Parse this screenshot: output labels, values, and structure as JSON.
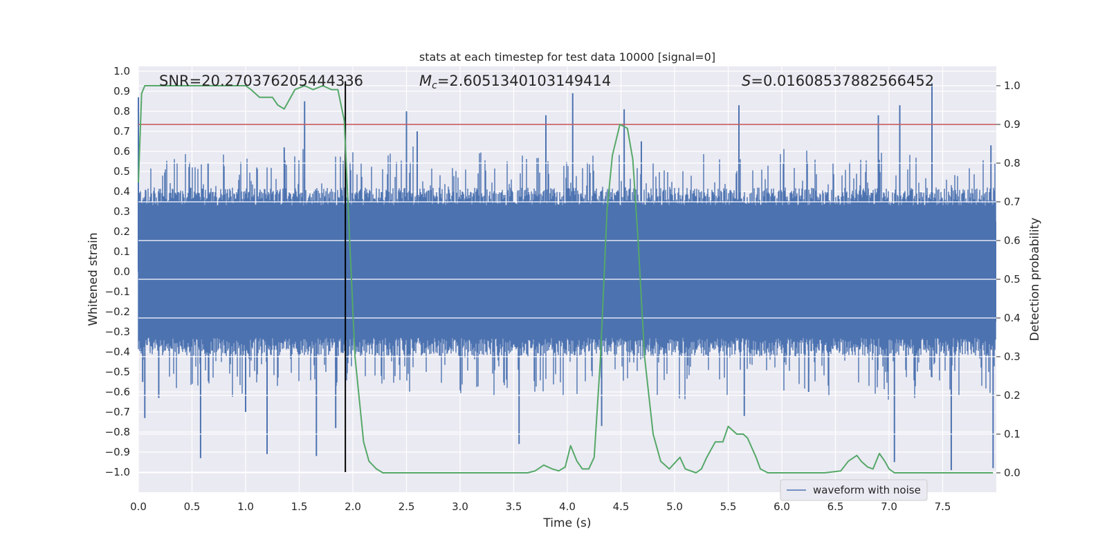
{
  "chart_data": {
    "type": "line",
    "title": "stats at each timestep for test data 10000 [signal=0]",
    "xlabel": "Time (s)",
    "ylabel_left": "Whitened strain",
    "ylabel_right": "Detection probability",
    "xlim": [
      0,
      8
    ],
    "ylim_left": [
      -1.1,
      1.05
    ],
    "ylim_right": [
      -0.05,
      1.03
    ],
    "x_ticks": [
      "0.0",
      "0.5",
      "1.0",
      "1.5",
      "2.0",
      "2.5",
      "3.0",
      "3.5",
      "4.0",
      "4.5",
      "5.0",
      "5.5",
      "6.0",
      "6.5",
      "7.0",
      "7.5"
    ],
    "y_ticks_left": [
      "1.0",
      "0.9",
      "0.8",
      "0.7",
      "0.6",
      "0.5",
      "0.4",
      "0.3",
      "0.2",
      "0.1",
      "0.0",
      "-0.1",
      "-0.2",
      "-0.3",
      "-0.4",
      "-0.5",
      "-0.6",
      "-0.7",
      "-0.8",
      "-0.9",
      "-1.0"
    ],
    "y_ticks_right": [
      "1.0",
      "0.9",
      "0.8",
      "0.7",
      "0.6",
      "0.5",
      "0.4",
      "0.3",
      "0.2",
      "0.1",
      "0.0"
    ],
    "annotations": {
      "snr": "SNR=20.270376205444336",
      "mc_symbol": "M",
      "mc_sub": "c",
      "mc_value": "=2.6051340103149414",
      "s_symbol": "S",
      "s_value": "=0.01608537882566452"
    },
    "legend": {
      "label": "waveform with noise",
      "location": "lower-right"
    },
    "threshold": {
      "value": 0.9,
      "color": "#c44e52"
    },
    "vertical_marker": {
      "x": 1.93,
      "ymin": -1.0,
      "ymax": 0.95,
      "color": "#000000"
    },
    "series": [
      {
        "name": "waveform with noise",
        "axis": "left",
        "color": "#4c72b0",
        "representation": "dense noise band",
        "typical_range": [
          -0.4,
          0.4
        ],
        "spikes": [
          {
            "x": 0.0,
            "y": 0.87
          },
          {
            "x": 0.04,
            "y": -0.55
          },
          {
            "x": 0.06,
            "y": -0.73
          },
          {
            "x": 0.19,
            "y": -0.63
          },
          {
            "x": 0.58,
            "y": -0.93
          },
          {
            "x": 0.65,
            "y": 0.54
          },
          {
            "x": 1.0,
            "y": -0.7
          },
          {
            "x": 1.2,
            "y": -0.91
          },
          {
            "x": 1.36,
            "y": 0.62
          },
          {
            "x": 1.55,
            "y": 0.85
          },
          {
            "x": 1.66,
            "y": -0.92
          },
          {
            "x": 1.84,
            "y": -0.78
          },
          {
            "x": 2.5,
            "y": 0.8
          },
          {
            "x": 2.6,
            "y": 0.7
          },
          {
            "x": 3.55,
            "y": -0.86
          },
          {
            "x": 3.8,
            "y": 0.78
          },
          {
            "x": 4.05,
            "y": 0.89
          },
          {
            "x": 4.32,
            "y": -0.77
          },
          {
            "x": 4.53,
            "y": 0.81
          },
          {
            "x": 4.69,
            "y": 0.65
          },
          {
            "x": 5.6,
            "y": 0.83
          },
          {
            "x": 5.65,
            "y": -0.72
          },
          {
            "x": 6.25,
            "y": -0.6
          },
          {
            "x": 6.9,
            "y": 0.78
          },
          {
            "x": 7.05,
            "y": -0.95
          },
          {
            "x": 7.1,
            "y": 0.83
          },
          {
            "x": 7.4,
            "y": 0.94
          },
          {
            "x": 7.58,
            "y": -0.99
          },
          {
            "x": 7.95,
            "y": 0.63
          },
          {
            "x": 7.97,
            "y": -0.98
          }
        ]
      },
      {
        "name": "Detection probability",
        "axis": "right",
        "color": "#55a868",
        "x": [
          0.0,
          0.03,
          0.06,
          0.1,
          0.15,
          0.3,
          0.5,
          0.7,
          0.9,
          1.0,
          1.05,
          1.13,
          1.25,
          1.3,
          1.36,
          1.46,
          1.55,
          1.63,
          1.72,
          1.8,
          1.86,
          1.92,
          1.97,
          2.02,
          2.1,
          2.15,
          2.22,
          2.28,
          2.35,
          2.45,
          2.6,
          2.8,
          3.0,
          3.2,
          3.4,
          3.55,
          3.63,
          3.7,
          3.78,
          3.86,
          3.92,
          3.98,
          4.03,
          4.09,
          4.14,
          4.2,
          4.25,
          4.31,
          4.37,
          4.42,
          4.49,
          4.56,
          4.61,
          4.66,
          4.72,
          4.8,
          4.87,
          4.95,
          5.05,
          5.1,
          5.2,
          5.25,
          5.3,
          5.38,
          5.45,
          5.5,
          5.58,
          5.64,
          5.68,
          5.76,
          5.8,
          5.87,
          5.95,
          6.0,
          6.2,
          6.4,
          6.55,
          6.62,
          6.7,
          6.74,
          6.8,
          6.85,
          6.91,
          6.96,
          7.0,
          7.05,
          7.1,
          7.15,
          7.2,
          7.3,
          7.4,
          7.6,
          7.8,
          7.97
        ],
        "values": [
          0.75,
          0.98,
          1.0,
          1.0,
          1.0,
          1.0,
          1.0,
          1.0,
          1.0,
          1.0,
          0.99,
          0.97,
          0.97,
          0.95,
          0.94,
          0.99,
          1.0,
          0.99,
          1.0,
          0.99,
          0.99,
          0.91,
          0.6,
          0.3,
          0.08,
          0.03,
          0.01,
          0.0,
          0.0,
          0.0,
          0.0,
          0.0,
          0.0,
          0.0,
          0.0,
          0.0,
          0.0,
          0.005,
          0.02,
          0.01,
          0.005,
          0.015,
          0.07,
          0.03,
          0.01,
          0.01,
          0.04,
          0.3,
          0.68,
          0.82,
          0.9,
          0.89,
          0.81,
          0.6,
          0.3,
          0.1,
          0.03,
          0.01,
          0.04,
          0.01,
          0.0,
          0.01,
          0.04,
          0.08,
          0.08,
          0.12,
          0.1,
          0.1,
          0.09,
          0.04,
          0.01,
          0.0,
          0.0,
          0.0,
          0.0,
          0.0,
          0.005,
          0.03,
          0.045,
          0.03,
          0.015,
          0.01,
          0.05,
          0.03,
          0.01,
          0.0,
          0.0,
          0.0,
          0.0,
          0.0,
          0.0,
          0.0,
          0.0,
          0.0
        ]
      }
    ]
  }
}
